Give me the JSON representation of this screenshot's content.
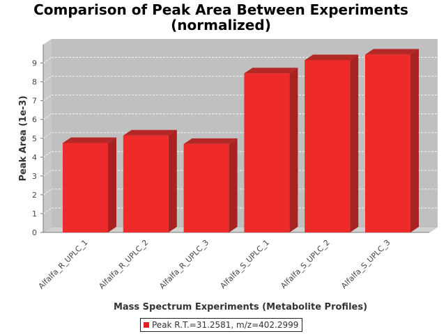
{
  "chart_data": {
    "type": "bar",
    "title": "Comparison of Peak Area Between Experiments\n(normalized)",
    "title_lines": [
      "Comparison of Peak Area Between Experiments",
      "(normalized)"
    ],
    "xlabel": "Mass Spectrum Experiments (Metabolite Profiles)",
    "ylabel": "Peak Area (1e-3)",
    "categories": [
      "Alfalfa_R_UPLC_1",
      "Alfalfa_R_UPLC_2",
      "Alfalfa_R_UPLC_3",
      "Alfalfa_S_UPLC_1",
      "Alfalfa_S_UPLC_2",
      "Alfalfa_S_UPLC_3"
    ],
    "series": [
      {
        "name": "Peak R.T.=31.2581, m/z=402.2999",
        "values": [
          4.75,
          5.15,
          4.7,
          8.45,
          9.15,
          9.45
        ]
      }
    ],
    "ylim": [
      0,
      10
    ],
    "yticks": [
      "0",
      "1",
      "2",
      "3",
      "4",
      "5",
      "6",
      "7",
      "8",
      "9"
    ],
    "grid": true,
    "style": "3d-bar",
    "legend_position": "bottom",
    "colors": {
      "bar_front": "#ee2a2a",
      "bar_top": "#b42828",
      "bar_side": "#a82222",
      "plot_background": "#c0c0c0",
      "floor": "#d0d0d0"
    }
  }
}
